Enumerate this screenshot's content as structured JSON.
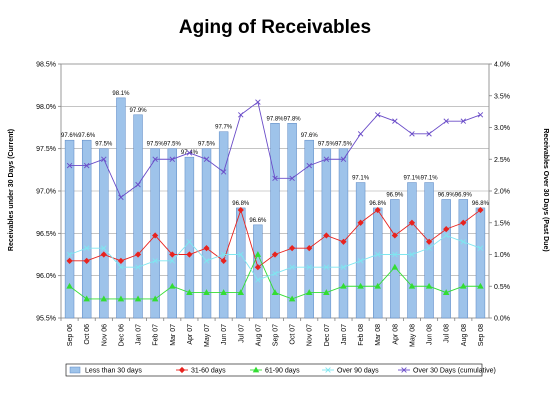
{
  "chart_data": {
    "type": "bar",
    "title": "Aging of Receivables",
    "ylabel": "Receivables under 30 Days (Current)",
    "y2label": "Receivables Over 30 Days (Past Due)",
    "ylim": [
      95.5,
      98.5
    ],
    "yticks": [
      "95.5%",
      "96.0%",
      "96.5%",
      "97.0%",
      "97.5%",
      "98.0%",
      "98.5%"
    ],
    "y2lim": [
      0,
      4
    ],
    "y2ticks": [
      "0.0%",
      "0.5%",
      "1.0%",
      "1.5%",
      "2.0%",
      "2.5%",
      "3.0%",
      "3.5%",
      "4.0%"
    ],
    "grid": true,
    "legend_position": "bottom",
    "categories": [
      "Sep 06",
      "Oct 06",
      "Nov 06",
      "Dec 06",
      "Jan 07",
      "Feb 07",
      "Mar 07",
      "Apr 07",
      "May 07",
      "Jun 07",
      "Jul 07",
      "Aug 07",
      "Sep 07",
      "Oct 07",
      "Nov 07",
      "Dec 07",
      "Jan 07",
      "Feb 08",
      "Mar 08",
      "Apr 08",
      "May 08",
      "Jun 08",
      "Jul 08",
      "Aug 08",
      "Sep 08"
    ],
    "series": [
      {
        "name": "Less than 30 days",
        "kind": "bar",
        "axis": "left",
        "color": "#9ec3ea",
        "values": [
          97.6,
          97.6,
          97.5,
          98.1,
          97.9,
          97.5,
          97.5,
          97.4,
          97.5,
          97.7,
          96.8,
          96.6,
          97.8,
          97.8,
          97.6,
          97.5,
          97.5,
          97.1,
          96.8,
          96.9,
          97.1,
          97.1,
          96.9,
          96.9,
          96.8
        ],
        "labels": [
          "97.6%",
          "97.6%",
          "97.5%",
          "98.1%",
          "97.9%",
          "97.5%",
          "97.5%",
          "97.4%",
          "97.5%",
          "97.7%",
          "96.8%",
          "96.6%",
          "97.8%",
          "97.8%",
          "97.6%",
          "97.5%",
          "97.5%",
          "97.1%",
          "96.8%",
          "96.9%",
          "97.1%",
          "97.1%",
          "96.9%",
          "96.9%",
          "96.8%"
        ],
        "labeled": [
          true,
          true,
          true,
          true,
          true,
          true,
          true,
          true,
          true,
          true,
          true,
          true,
          true,
          true,
          true,
          true,
          true,
          true,
          true,
          true,
          true,
          true,
          true,
          true,
          true
        ]
      },
      {
        "name": "31-60 days",
        "kind": "line",
        "axis": "right",
        "color": "#e8231f",
        "marker": "diamond",
        "values": [
          0.9,
          0.9,
          1.0,
          0.9,
          1.0,
          1.3,
          1.0,
          1.0,
          1.1,
          0.9,
          1.7,
          0.8,
          1.0,
          1.1,
          1.1,
          1.3,
          1.2,
          1.5,
          1.7,
          1.3,
          1.5,
          1.2,
          1.4,
          1.5,
          1.7
        ]
      },
      {
        "name": "61-90 days",
        "kind": "line",
        "axis": "right",
        "color": "#33dd33",
        "marker": "triangle",
        "values": [
          0.5,
          0.3,
          0.3,
          0.3,
          0.3,
          0.3,
          0.5,
          0.4,
          0.4,
          0.4,
          0.4,
          1.0,
          0.4,
          0.3,
          0.4,
          0.4,
          0.5,
          0.5,
          0.5,
          0.8,
          0.5,
          0.5,
          0.4,
          0.5,
          0.5
        ]
      },
      {
        "name": "Over 90 days",
        "kind": "line",
        "axis": "right",
        "color": "#7fe6f0",
        "marker": "x",
        "values": [
          1.0,
          1.1,
          1.1,
          0.8,
          0.8,
          0.9,
          0.9,
          1.2,
          0.9,
          1.0,
          1.0,
          0.6,
          0.7,
          0.8,
          0.8,
          0.8,
          0.8,
          0.9,
          1.0,
          1.0,
          1.0,
          1.1,
          1.3,
          1.2,
          1.1
        ]
      },
      {
        "name": "Over 30 Days (cumulative)",
        "kind": "line",
        "axis": "right",
        "color": "#6a4cc8",
        "marker": "x",
        "values": [
          2.4,
          2.4,
          2.5,
          1.9,
          2.1,
          2.5,
          2.5,
          2.6,
          2.5,
          2.3,
          3.2,
          3.4,
          2.2,
          2.2,
          2.4,
          2.5,
          2.5,
          2.9,
          3.2,
          3.1,
          2.9,
          2.9,
          3.1,
          3.1,
          3.2
        ]
      }
    ]
  }
}
